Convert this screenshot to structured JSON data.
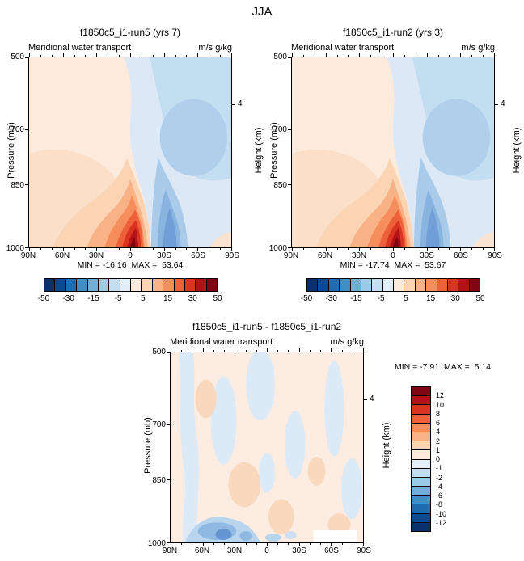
{
  "page_title": "JJA",
  "panels": {
    "run5": {
      "title": "f1850c5_i1-run5 (yrs 7)",
      "subtitle": "Meridional water transport",
      "units": "m/s g/kg",
      "minmax": "MIN = -16.16  MAX =  53.64"
    },
    "run2": {
      "title": "f1850c5_i1-run2 (yrs 3)",
      "subtitle": "Meridional water transport",
      "units": "m/s g/kg",
      "minmax": "MIN = -17.74  MAX =  53.67"
    },
    "diff": {
      "title": "f1850c5_i1-run5 - f1850c5_i1-run2",
      "subtitle": "Meridional water transport",
      "units": "m/s g/kg",
      "minmax": "MIN = -7.91  MAX =  5.14"
    }
  },
  "axes": {
    "pressure_label": "Pressure (mb)",
    "height_label": "Height (km)",
    "pressure_ticks": [
      "500",
      "700",
      "850",
      "1000"
    ],
    "lat_ticks": [
      "90N",
      "60N",
      "30N",
      "0",
      "30S",
      "60S",
      "90S"
    ],
    "height_tick": "4"
  },
  "colorbar_main": {
    "labels": [
      "-50",
      "-30",
      "-15",
      "-5",
      "5",
      "15",
      "30",
      "50"
    ],
    "colors": [
      "#08306b",
      "#0a4a90",
      "#1f6cb0",
      "#3f8fc6",
      "#6fafd8",
      "#9ccbe8",
      "#c3ddf1",
      "#e3eef8",
      "#fdeadb",
      "#fbd4b4",
      "#f9b285",
      "#f68d5c",
      "#ee603a",
      "#d93322",
      "#b51217",
      "#7f0714"
    ]
  },
  "colorbar_diff": {
    "labels": [
      "12",
      "10",
      "8",
      "6",
      "4",
      "2",
      "1",
      "0",
      "-1",
      "-2",
      "-4",
      "-6",
      "-8",
      "-10",
      "-12"
    ],
    "colors": [
      "#7f0714",
      "#b51217",
      "#d93322",
      "#ee603a",
      "#f68d5c",
      "#f9b285",
      "#fbd4b4",
      "#fdeadb",
      "#e3eef8",
      "#c3ddf1",
      "#9ccbe8",
      "#6fafd8",
      "#3f8fc6",
      "#1f6cb0",
      "#0a4a90",
      "#08306b"
    ]
  },
  "chart_data": [
    {
      "type": "heatmap",
      "title": "f1850c5_i1-run5 (yrs 7)",
      "variable": "Meridional water transport",
      "units": "m/s g/kg",
      "season": "JJA",
      "x_ticks": [
        "90N",
        "60N",
        "30N",
        "0",
        "30S",
        "60S",
        "90S"
      ],
      "y_label": "Pressure (mb)",
      "y_ticks": [
        500,
        700,
        850,
        1000
      ],
      "y2_label": "Height (km)",
      "y2_ticks": [
        4
      ],
      "min": -16.16,
      "max": 53.64,
      "colorbar_levels": [
        -50,
        -30,
        -15,
        -5,
        5,
        15,
        30,
        50
      ],
      "features": "Strong positive (red) core near the surface around 0-15S exceeding 50; negative (blue) cell near 30S below 850 mb; pale blue negatives aloft over the southern hemisphere; light warm values over most of the northern hemisphere."
    },
    {
      "type": "heatmap",
      "title": "f1850c5_i1-run2 (yrs 3)",
      "variable": "Meridional water transport",
      "units": "m/s g/kg",
      "season": "JJA",
      "x_ticks": [
        "90N",
        "60N",
        "30N",
        "0",
        "30S",
        "60S",
        "90S"
      ],
      "y_label": "Pressure (mb)",
      "y_ticks": [
        500,
        700,
        850,
        1000
      ],
      "y2_label": "Height (km)",
      "y2_ticks": [
        4
      ],
      "min": -17.74,
      "max": 53.67,
      "colorbar_levels": [
        -50,
        -30,
        -15,
        -5,
        5,
        15,
        30,
        50
      ],
      "features": "Nearly identical pattern to run5: surface positive maximum near the equator/15S, blue negative cell near 30S at low levels."
    },
    {
      "type": "heatmap",
      "title": "f1850c5_i1-run5 - f1850c5_i1-run2",
      "variable": "Meridional water transport",
      "units": "m/s g/kg",
      "season": "JJA",
      "x_ticks": [
        "90N",
        "60N",
        "30N",
        "0",
        "30S",
        "60S",
        "90S"
      ],
      "y_label": "Pressure (mb)",
      "y_ticks": [
        500,
        700,
        850,
        1000
      ],
      "y2_label": "Height (km)",
      "y2_ticks": [
        4
      ],
      "min": -7.91,
      "max": 5.14,
      "colorbar_levels": [
        -12,
        -10,
        -8,
        -6,
        -4,
        -2,
        -1,
        0,
        1,
        2,
        4,
        6,
        8,
        10,
        12
      ],
      "features": "Mostly near-zero pale warm background with scattered pale blue streaks; stronger negative (blue) patches near the surface between roughly 30N and 60N; small white masked box near the surface around 60S."
    }
  ]
}
